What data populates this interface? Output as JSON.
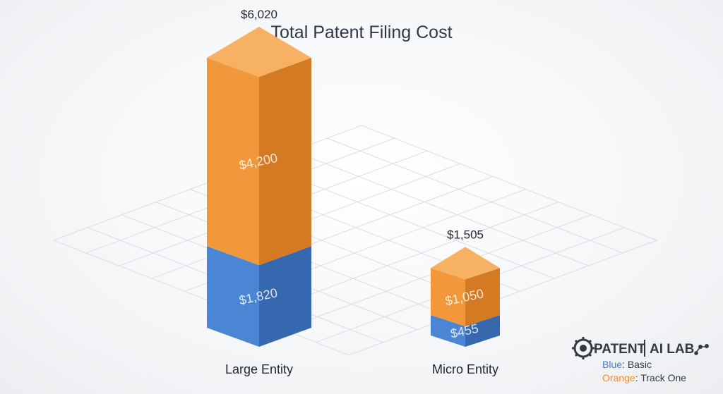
{
  "chart_data": {
    "type": "bar",
    "stacked": true,
    "style": "3d",
    "title": "Total Patent Filing Cost",
    "categories": [
      "Large Entity",
      "Micro Entity"
    ],
    "series": [
      {
        "name": "Basic",
        "values": [
          1820,
          455
        ],
        "labels": [
          "$1,820",
          "$455"
        ]
      },
      {
        "name": "Track One",
        "values": [
          4200,
          1050
        ],
        "labels": [
          "$4,200",
          "$1,050"
        ]
      }
    ],
    "totals": [
      6020,
      1505
    ],
    "total_labels": [
      "$6,020",
      "$1,505"
    ],
    "legend": [
      {
        "color_word": "Blue",
        "series": "Basic"
      },
      {
        "color_word": "Orange",
        "series": "Track One"
      }
    ],
    "legend_position": "bottom-right",
    "grid": true,
    "colors": {
      "Basic": "#4a86d4",
      "Track One": "#f0983a"
    }
  },
  "logo": {
    "text_left": "PATENT",
    "text_right": "AI LAB"
  },
  "palette": {
    "blue_front": "#4a86d4",
    "blue_side": "#3568ae",
    "blue_top": "#6fa3e4",
    "orange_front": "#f0983a",
    "orange_side": "#d37a22",
    "orange_top": "#f7b163",
    "legend_blue": "#3f7fc9",
    "legend_orange": "#e8902f"
  }
}
